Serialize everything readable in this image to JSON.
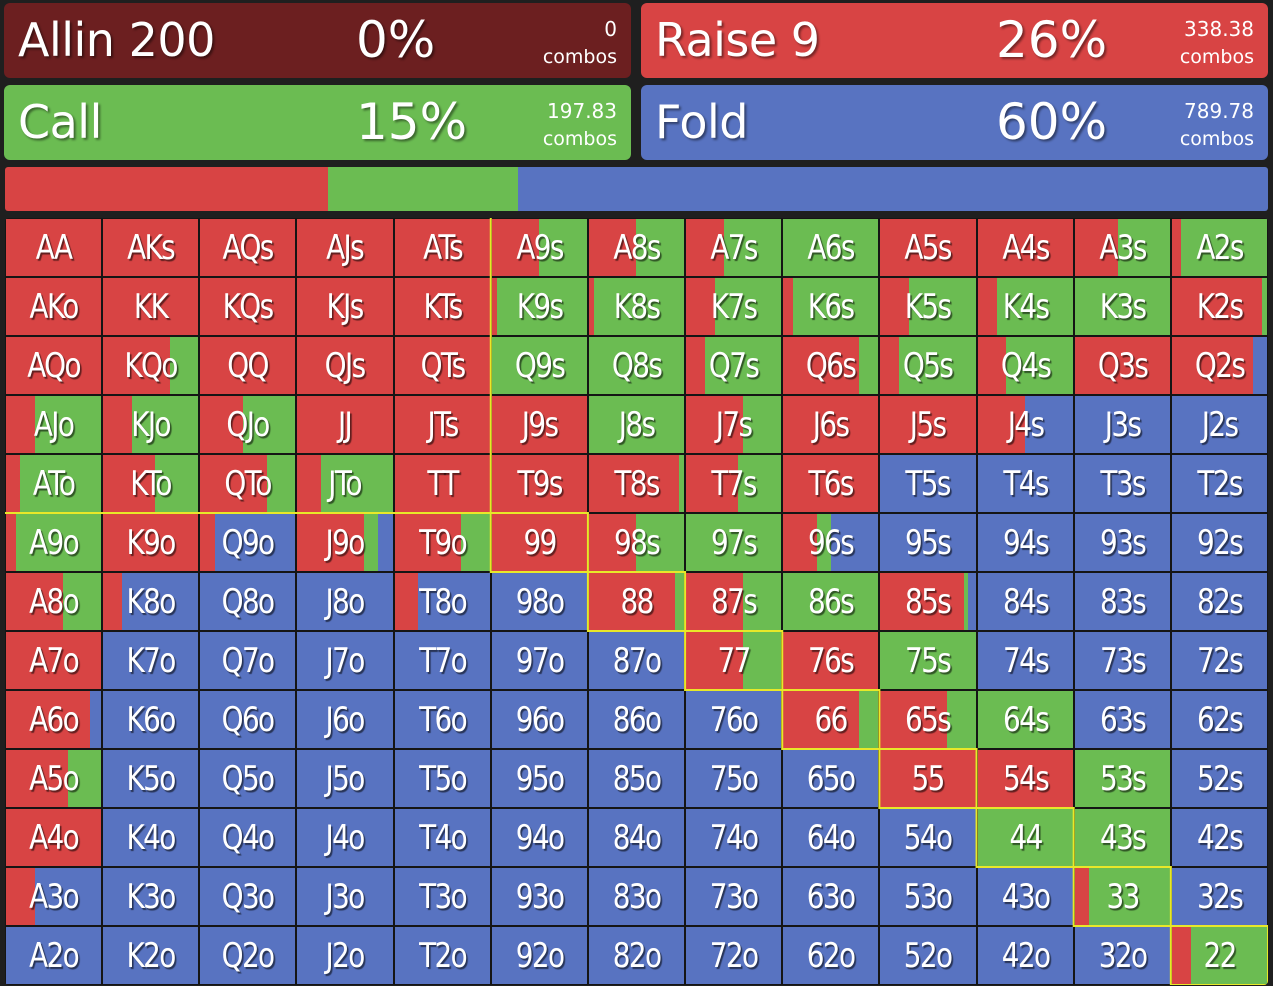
{
  "colors": {
    "allin": "#6c1f20",
    "raise": "#d84444",
    "call": "#6bbc52",
    "fold": "#5873c1",
    "highlight": "#e8e829"
  },
  "actions": [
    {
      "id": "allin",
      "name": "Allin 200",
      "percent": "0%",
      "combos": "0",
      "unit": "combos",
      "freq": 0,
      "color": "#6c1f20"
    },
    {
      "id": "raise",
      "name": "Raise 9",
      "percent": "26%",
      "combos": "338.38",
      "unit": "combos",
      "freq": 0.256,
      "color": "#d84444"
    },
    {
      "id": "call",
      "name": "Call",
      "percent": "15%",
      "combos": "197.83",
      "unit": "combos",
      "freq": 0.15,
      "color": "#6bbc52"
    },
    {
      "id": "fold",
      "name": "Fold",
      "percent": "60%",
      "combos": "789.78",
      "unit": "combos",
      "freq": 0.598,
      "color": "#5873c1"
    }
  ],
  "grid": {
    "rows": [
      [
        [
          "AA",
          1,
          0,
          0
        ],
        [
          "AKs",
          1,
          0,
          0
        ],
        [
          "AQs",
          1,
          0,
          0
        ],
        [
          "AJs",
          1,
          0,
          0
        ],
        [
          "ATs",
          1,
          0,
          0
        ],
        [
          "A9s",
          0.5,
          0.5,
          0
        ],
        [
          "A8s",
          0.5,
          0.5,
          0
        ],
        [
          "A7s",
          0.4,
          0.6,
          0
        ],
        [
          "A6s",
          0,
          1,
          0
        ],
        [
          "A5s",
          1,
          0,
          0
        ],
        [
          "A4s",
          1,
          0,
          0
        ],
        [
          "A3s",
          0.45,
          0.55,
          0
        ],
        [
          "A2s",
          0.1,
          0.9,
          0
        ]
      ],
      [
        [
          "AKo",
          1,
          0,
          0
        ],
        [
          "KK",
          1,
          0,
          0
        ],
        [
          "KQs",
          1,
          0,
          0
        ],
        [
          "KJs",
          1,
          0,
          0
        ],
        [
          "KTs",
          1,
          0,
          0
        ],
        [
          "K9s",
          0.05,
          0.95,
          0
        ],
        [
          "K8s",
          0.05,
          0.95,
          0
        ],
        [
          "K7s",
          0.3,
          0.7,
          0
        ],
        [
          "K6s",
          0.1,
          0.9,
          0
        ],
        [
          "K5s",
          0.3,
          0.7,
          0
        ],
        [
          "K4s",
          0.2,
          0.8,
          0
        ],
        [
          "K3s",
          0,
          1,
          0
        ],
        [
          "K2s",
          0.95,
          0.05,
          0
        ]
      ],
      [
        [
          "AQo",
          1,
          0,
          0
        ],
        [
          "KQo",
          0.7,
          0.3,
          0
        ],
        [
          "QQ",
          1,
          0,
          0
        ],
        [
          "QJs",
          1,
          0,
          0
        ],
        [
          "QTs",
          1,
          0,
          0
        ],
        [
          "Q9s",
          0,
          1,
          0
        ],
        [
          "Q8s",
          0,
          1,
          0
        ],
        [
          "Q7s",
          0.2,
          0.8,
          0
        ],
        [
          "Q6s",
          0.8,
          0.2,
          0
        ],
        [
          "Q5s",
          0.2,
          0.8,
          0
        ],
        [
          "Q4s",
          0.3,
          0.7,
          0
        ],
        [
          "Q3s",
          1,
          0,
          0
        ],
        [
          "Q2s",
          0.85,
          0,
          0.15
        ]
      ],
      [
        [
          "AJo",
          0.3,
          0.7,
          0
        ],
        [
          "KJo",
          0.3,
          0.7,
          0
        ],
        [
          "QJo",
          0.45,
          0.55,
          0
        ],
        [
          "JJ",
          1,
          0,
          0
        ],
        [
          "JTs",
          1,
          0,
          0
        ],
        [
          "J9s",
          1,
          0,
          0
        ],
        [
          "J8s",
          0,
          1,
          0
        ],
        [
          "J7s",
          0.6,
          0.4,
          0
        ],
        [
          "J6s",
          1,
          0,
          0
        ],
        [
          "J5s",
          1,
          0,
          0
        ],
        [
          "J4s",
          0.5,
          0,
          0.5
        ],
        [
          "J3s",
          0,
          0,
          1
        ],
        [
          "J2s",
          0,
          0,
          1
        ]
      ],
      [
        [
          "ATo",
          0.15,
          0.85,
          0
        ],
        [
          "KTo",
          0.55,
          0.45,
          0
        ],
        [
          "QTo",
          0.7,
          0.3,
          0
        ],
        [
          "JTo",
          0.25,
          0.75,
          0
        ],
        [
          "TT",
          1,
          0,
          0
        ],
        [
          "T9s",
          1,
          0,
          0
        ],
        [
          "T8s",
          0.95,
          0.05,
          0
        ],
        [
          "T7s",
          0.55,
          0.45,
          0
        ],
        [
          "T6s",
          1,
          0,
          0
        ],
        [
          "T5s",
          0,
          0,
          1
        ],
        [
          "T4s",
          0,
          0,
          1
        ],
        [
          "T3s",
          0,
          0,
          1
        ],
        [
          "T2s",
          0,
          0,
          1
        ]
      ],
      [
        [
          "A9o",
          0.1,
          0.9,
          0
        ],
        [
          "K9o",
          1,
          0,
          0
        ],
        [
          "Q9o",
          0.15,
          0,
          0.85
        ],
        [
          "J9o",
          0.7,
          0.15,
          0.15
        ],
        [
          "T9o",
          0.7,
          0.3,
          0
        ],
        [
          "99",
          1,
          0,
          0
        ],
        [
          "98s",
          0.5,
          0.5,
          0
        ],
        [
          "97s",
          0,
          1,
          0
        ],
        [
          "96s",
          0.35,
          0.15,
          0.5
        ],
        [
          "95s",
          0,
          0,
          1
        ],
        [
          "94s",
          0,
          0,
          1
        ],
        [
          "93s",
          0,
          0,
          1
        ],
        [
          "92s",
          0,
          0,
          1
        ]
      ],
      [
        [
          "A8o",
          0.6,
          0.4,
          0
        ],
        [
          "K8o",
          0.2,
          0,
          0.8
        ],
        [
          "Q8o",
          0,
          0,
          1
        ],
        [
          "J8o",
          0,
          0,
          1
        ],
        [
          "T8o",
          0.25,
          0,
          0.75
        ],
        [
          "98o",
          0,
          0,
          1
        ],
        [
          "88",
          0.9,
          0.1,
          0
        ],
        [
          "87s",
          0.6,
          0.4,
          0
        ],
        [
          "86s",
          0,
          1,
          0
        ],
        [
          "85s",
          0.88,
          0.04,
          0.08
        ],
        [
          "84s",
          0,
          0,
          1
        ],
        [
          "83s",
          0,
          0,
          1
        ],
        [
          "82s",
          0,
          0,
          1
        ]
      ],
      [
        [
          "A7o",
          1,
          0,
          0
        ],
        [
          "K7o",
          0,
          0,
          1
        ],
        [
          "Q7o",
          0,
          0,
          1
        ],
        [
          "J7o",
          0,
          0,
          1
        ],
        [
          "T7o",
          0,
          0,
          1
        ],
        [
          "97o",
          0,
          0,
          1
        ],
        [
          "87o",
          0,
          0,
          1
        ],
        [
          "77",
          0.6,
          0.4,
          0
        ],
        [
          "76s",
          1,
          0,
          0
        ],
        [
          "75s",
          0,
          1,
          0
        ],
        [
          "74s",
          0,
          0,
          1
        ],
        [
          "73s",
          0,
          0,
          1
        ],
        [
          "72s",
          0,
          0,
          1
        ]
      ],
      [
        [
          "A6o",
          0.88,
          0,
          0.12
        ],
        [
          "K6o",
          0,
          0,
          1
        ],
        [
          "Q6o",
          0,
          0,
          1
        ],
        [
          "J6o",
          0,
          0,
          1
        ],
        [
          "T6o",
          0,
          0,
          1
        ],
        [
          "96o",
          0,
          0,
          1
        ],
        [
          "86o",
          0,
          0,
          1
        ],
        [
          "76o",
          0,
          0,
          1
        ],
        [
          "66",
          0.8,
          0.2,
          0
        ],
        [
          "65s",
          0.7,
          0.3,
          0
        ],
        [
          "64s",
          0,
          1,
          0
        ],
        [
          "63s",
          0,
          0,
          1
        ],
        [
          "62s",
          0,
          0,
          1
        ]
      ],
      [
        [
          "A5o",
          0.65,
          0.35,
          0
        ],
        [
          "K5o",
          0,
          0,
          1
        ],
        [
          "Q5o",
          0,
          0,
          1
        ],
        [
          "J5o",
          0,
          0,
          1
        ],
        [
          "T5o",
          0,
          0,
          1
        ],
        [
          "95o",
          0,
          0,
          1
        ],
        [
          "85o",
          0,
          0,
          1
        ],
        [
          "75o",
          0,
          0,
          1
        ],
        [
          "65o",
          0,
          0,
          1
        ],
        [
          "55",
          1,
          0,
          0
        ],
        [
          "54s",
          1,
          0,
          0
        ],
        [
          "53s",
          0,
          1,
          0
        ],
        [
          "52s",
          0,
          0,
          1
        ]
      ],
      [
        [
          "A4o",
          1,
          0,
          0
        ],
        [
          "K4o",
          0,
          0,
          1
        ],
        [
          "Q4o",
          0,
          0,
          1
        ],
        [
          "J4o",
          0,
          0,
          1
        ],
        [
          "T4o",
          0,
          0,
          1
        ],
        [
          "94o",
          0,
          0,
          1
        ],
        [
          "84o",
          0,
          0,
          1
        ],
        [
          "74o",
          0,
          0,
          1
        ],
        [
          "64o",
          0,
          0,
          1
        ],
        [
          "54o",
          0,
          0,
          1
        ],
        [
          "44",
          0,
          1,
          0
        ],
        [
          "43s",
          0,
          1,
          0
        ],
        [
          "42s",
          0,
          0,
          1
        ]
      ],
      [
        [
          "A3o",
          0.3,
          0,
          0.7
        ],
        [
          "K3o",
          0,
          0,
          1
        ],
        [
          "Q3o",
          0,
          0,
          1
        ],
        [
          "J3o",
          0,
          0,
          1
        ],
        [
          "T3o",
          0,
          0,
          1
        ],
        [
          "93o",
          0,
          0,
          1
        ],
        [
          "83o",
          0,
          0,
          1
        ],
        [
          "73o",
          0,
          0,
          1
        ],
        [
          "63o",
          0,
          0,
          1
        ],
        [
          "53o",
          0,
          0,
          1
        ],
        [
          "43o",
          0,
          0,
          1
        ],
        [
          "33",
          0.15,
          0.85,
          0
        ],
        [
          "32s",
          0,
          0,
          1
        ]
      ],
      [
        [
          "A2o",
          0,
          0,
          1
        ],
        [
          "K2o",
          0,
          0,
          1
        ],
        [
          "Q2o",
          0,
          0,
          1
        ],
        [
          "J2o",
          0,
          0,
          1
        ],
        [
          "T2o",
          0,
          0,
          1
        ],
        [
          "92o",
          0,
          0,
          1
        ],
        [
          "82o",
          0,
          0,
          1
        ],
        [
          "72o",
          0,
          0,
          1
        ],
        [
          "62o",
          0,
          0,
          1
        ],
        [
          "52o",
          0,
          0,
          1
        ],
        [
          "42o",
          0,
          0,
          1
        ],
        [
          "32o",
          0,
          0,
          1
        ],
        [
          "22",
          0.2,
          0.8,
          0
        ]
      ]
    ]
  }
}
